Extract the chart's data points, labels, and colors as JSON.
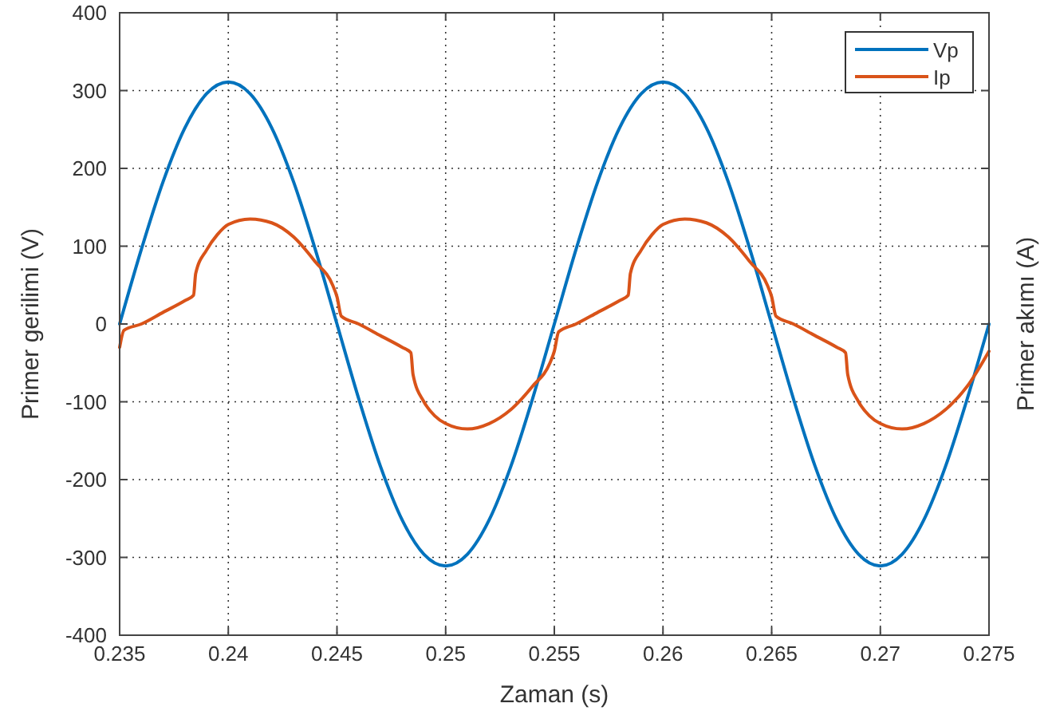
{
  "chart_data": {
    "type": "line",
    "xlabel": "Zaman (s)",
    "ylabel": "Primer gerilimi (V)",
    "y2label": "Primer akımı (A)",
    "xlim": [
      0.235,
      0.275
    ],
    "xticks": [
      0.235,
      0.24,
      0.245,
      0.25,
      0.255,
      0.26,
      0.265,
      0.27,
      0.275
    ],
    "ylim": [
      -400,
      400
    ],
    "yticks": [
      -400,
      -300,
      -200,
      -100,
      0,
      100,
      200,
      300,
      400
    ],
    "grid": true,
    "legend": "top right",
    "line_style": "solid",
    "series": [
      {
        "name": "Vp",
        "color": "#0072bd",
        "x": [
          0.235,
          0.236,
          0.237,
          0.238,
          0.239,
          0.24,
          0.241,
          0.242,
          0.243,
          0.244,
          0.245,
          0.246,
          0.247,
          0.248,
          0.249,
          0.25,
          0.251,
          0.252,
          0.253,
          0.254,
          0.255,
          0.256,
          0.257,
          0.258,
          0.259,
          0.26,
          0.261,
          0.262,
          0.263,
          0.264,
          0.265,
          0.266,
          0.267,
          0.268,
          0.269,
          0.27,
          0.271,
          0.272,
          0.273,
          0.274,
          0.275
        ],
        "values": [
          0,
          96,
          183,
          252,
          296,
          311,
          296,
          252,
          183,
          96,
          0,
          -96,
          -183,
          -252,
          -296,
          -311,
          -296,
          -252,
          -183,
          -96,
          0,
          96,
          183,
          252,
          296,
          311,
          296,
          252,
          183,
          96,
          0,
          -96,
          -183,
          -252,
          -296,
          -311,
          -296,
          -252,
          -183,
          -96,
          0
        ]
      },
      {
        "name": "Ip",
        "color": "#d95319",
        "x": [
          0.235,
          0.2352,
          0.236,
          0.237,
          0.238,
          0.2384,
          0.2385,
          0.239,
          0.2395,
          0.24,
          0.241,
          0.242,
          0.243,
          0.244,
          0.2448,
          0.245,
          0.2452,
          0.246,
          0.247,
          0.248,
          0.2484,
          0.2485,
          0.249,
          0.2495,
          0.25,
          0.251,
          0.252,
          0.253,
          0.254,
          0.2548,
          0.255,
          0.2552,
          0.256,
          0.257,
          0.258,
          0.2584,
          0.2585,
          0.259,
          0.2595,
          0.26,
          0.261,
          0.262,
          0.263,
          0.264,
          0.2648,
          0.265,
          0.2652,
          0.266,
          0.267,
          0.268,
          0.2684,
          0.2685,
          0.269,
          0.2695,
          0.27,
          0.271,
          0.272,
          0.273,
          0.274,
          0.275
        ],
        "values": [
          -30,
          -8,
          0,
          15,
          30,
          37,
          65,
          95,
          115,
          128,
          135,
          130,
          112,
          80,
          50,
          35,
          10,
          0,
          -15,
          -30,
          -37,
          -65,
          -100,
          -118,
          -128,
          -135,
          -128,
          -110,
          -80,
          -50,
          -35,
          -10,
          0,
          15,
          30,
          37,
          65,
          95,
          115,
          128,
          135,
          130,
          112,
          80,
          50,
          35,
          10,
          0,
          -15,
          -30,
          -37,
          -65,
          -100,
          -118,
          -128,
          -135,
          -128,
          -110,
          -80,
          -35
        ]
      }
    ]
  }
}
